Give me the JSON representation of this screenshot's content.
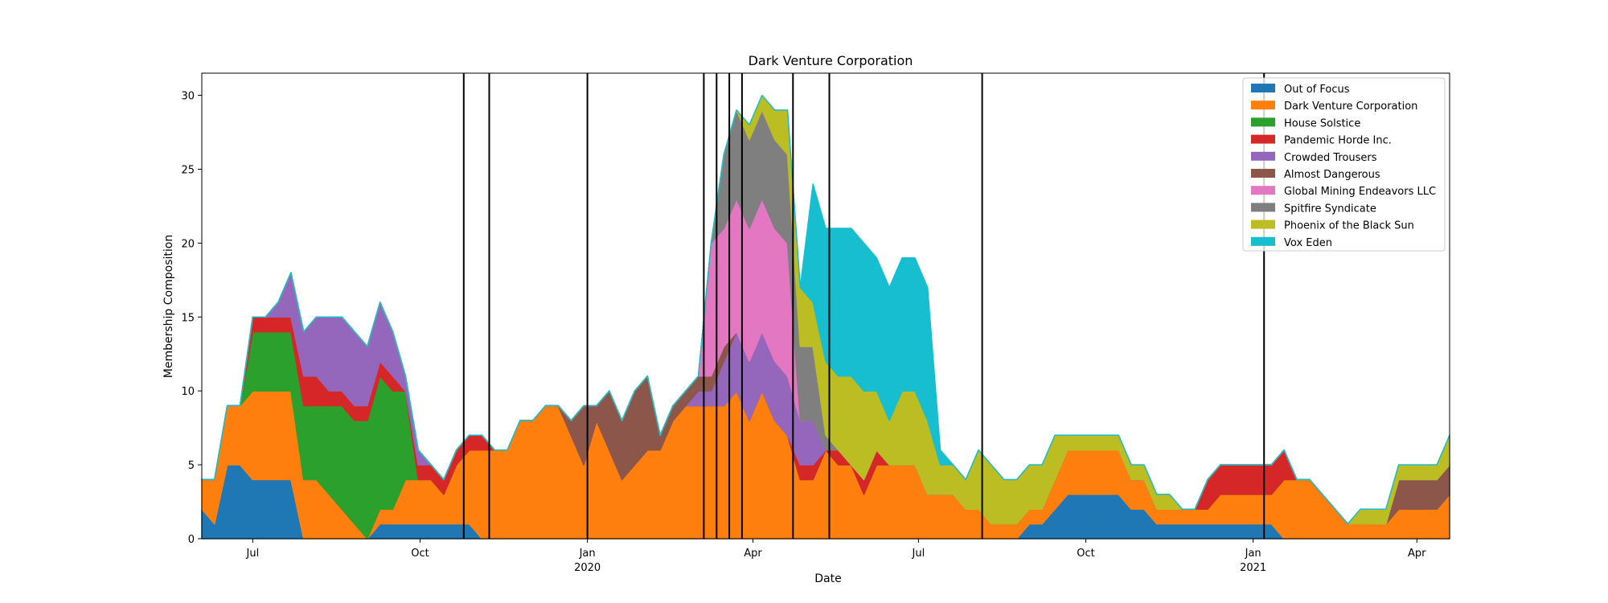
{
  "chart_data": {
    "type": "area",
    "stacked": true,
    "title": "Dark Venture Corporation",
    "xlabel": "Date",
    "ylabel": "Membership Composition",
    "xlim": [
      "2019-06-03",
      "2021-04-19"
    ],
    "ylim": [
      0,
      31.5
    ],
    "grid": false,
    "legend_position": "top-right",
    "x": [
      "2019-06-03",
      "2019-06-10",
      "2019-06-17",
      "2019-06-24",
      "2019-07-01",
      "2019-07-08",
      "2019-07-15",
      "2019-07-22",
      "2019-07-29",
      "2019-08-05",
      "2019-08-12",
      "2019-08-19",
      "2019-08-26",
      "2019-09-02",
      "2019-09-09",
      "2019-09-16",
      "2019-09-23",
      "2019-09-30",
      "2019-10-07",
      "2019-10-14",
      "2019-10-21",
      "2019-10-28",
      "2019-11-04",
      "2019-11-11",
      "2019-11-18",
      "2019-11-25",
      "2019-12-02",
      "2019-12-09",
      "2019-12-16",
      "2019-12-23",
      "2019-12-30",
      "2020-01-06",
      "2020-01-13",
      "2020-01-20",
      "2020-01-27",
      "2020-02-03",
      "2020-02-10",
      "2020-02-17",
      "2020-02-24",
      "2020-03-02",
      "2020-03-09",
      "2020-03-16",
      "2020-03-23",
      "2020-03-30",
      "2020-04-06",
      "2020-04-13",
      "2020-04-20",
      "2020-04-27",
      "2020-05-04",
      "2020-05-11",
      "2020-05-18",
      "2020-05-25",
      "2020-06-01",
      "2020-06-08",
      "2020-06-15",
      "2020-06-22",
      "2020-06-29",
      "2020-07-06",
      "2020-07-13",
      "2020-07-20",
      "2020-07-27",
      "2020-08-03",
      "2020-08-10",
      "2020-08-17",
      "2020-08-24",
      "2020-08-31",
      "2020-09-07",
      "2020-09-14",
      "2020-09-21",
      "2020-09-28",
      "2020-10-05",
      "2020-10-12",
      "2020-10-19",
      "2020-10-26",
      "2020-11-02",
      "2020-11-09",
      "2020-11-16",
      "2020-11-23",
      "2020-11-30",
      "2020-12-07",
      "2020-12-14",
      "2020-12-21",
      "2020-12-28",
      "2021-01-04",
      "2021-01-11",
      "2021-01-18",
      "2021-01-25",
      "2021-02-01",
      "2021-02-08",
      "2021-02-15",
      "2021-02-22",
      "2021-03-01",
      "2021-03-08",
      "2021-03-15",
      "2021-03-22",
      "2021-03-29",
      "2021-04-05",
      "2021-04-12",
      "2021-04-19"
    ],
    "series": [
      {
        "name": "Out of Focus",
        "color": "#1f77b4",
        "values": [
          2,
          1,
          5,
          5,
          4,
          4,
          4,
          4,
          0,
          0,
          0,
          0,
          0,
          0,
          1,
          1,
          1,
          1,
          1,
          1,
          1,
          1,
          0,
          0,
          0,
          0,
          0,
          0,
          0,
          0,
          0,
          0,
          0,
          0,
          0,
          0,
          0,
          0,
          0,
          0,
          0,
          0,
          0,
          0,
          0,
          0,
          0,
          0,
          0,
          0,
          0,
          0,
          0,
          0,
          0,
          0,
          0,
          0,
          0,
          0,
          0,
          0,
          0,
          0,
          0,
          1,
          1,
          2,
          3,
          3,
          3,
          3,
          3,
          2,
          2,
          1,
          1,
          1,
          1,
          1,
          1,
          1,
          1,
          1,
          1,
          0,
          0,
          0,
          0,
          0,
          0,
          0,
          0,
          0,
          0,
          0,
          0,
          0,
          0
        ]
      },
      {
        "name": "Dark Venture Corporation",
        "color": "#ff7f0e",
        "values": [
          2,
          3,
          4,
          4,
          6,
          6,
          6,
          6,
          4,
          4,
          3,
          2,
          1,
          0,
          1,
          1,
          3,
          3,
          3,
          2,
          4,
          5,
          6,
          6,
          6,
          8,
          8,
          9,
          9,
          7,
          5,
          8,
          6,
          4,
          5,
          6,
          6,
          8,
          9,
          9,
          9,
          9,
          10,
          8,
          10,
          8,
          7,
          4,
          4,
          6,
          5,
          5,
          3,
          5,
          5,
          5,
          5,
          3,
          3,
          3,
          2,
          2,
          1,
          1,
          1,
          1,
          1,
          2,
          3,
          3,
          3,
          3,
          3,
          2,
          2,
          1,
          1,
          1,
          1,
          1,
          2,
          2,
          2,
          2,
          2,
          4,
          4,
          4,
          3,
          2,
          1,
          1,
          1,
          1,
          2,
          2,
          2,
          2,
          3
        ]
      },
      {
        "name": "House Solstice",
        "color": "#2ca02c",
        "values": [
          0,
          0,
          0,
          0,
          4,
          4,
          4,
          4,
          5,
          5,
          6,
          7,
          7,
          8,
          9,
          8,
          6,
          0,
          0,
          0,
          0,
          0,
          0,
          0,
          0,
          0,
          0,
          0,
          0,
          0,
          0,
          0,
          0,
          0,
          0,
          0,
          0,
          0,
          0,
          0,
          0,
          0,
          0,
          0,
          0,
          0,
          0,
          0,
          0,
          0,
          0,
          0,
          0,
          0,
          0,
          0,
          0,
          0,
          0,
          0,
          0,
          0,
          0,
          0,
          0,
          0,
          0,
          0,
          0,
          0,
          0,
          0,
          0,
          0,
          0,
          0,
          0,
          0,
          0,
          0,
          0,
          0,
          0,
          0,
          0,
          0,
          0,
          0,
          0,
          0,
          0,
          0,
          0,
          0,
          0,
          0,
          0,
          0,
          0
        ]
      },
      {
        "name": "Pandemic Horde Inc.",
        "color": "#d62728",
        "values": [
          0,
          0,
          0,
          0,
          1,
          1,
          1,
          1,
          2,
          2,
          1,
          1,
          1,
          1,
          1,
          1,
          0,
          1,
          1,
          1,
          1,
          1,
          1,
          0,
          0,
          0,
          0,
          0,
          0,
          0,
          0,
          0,
          0,
          0,
          0,
          0,
          0,
          0,
          0,
          0,
          0,
          0,
          0,
          0,
          0,
          0,
          0,
          1,
          1,
          0,
          1,
          0,
          1,
          1,
          0,
          0,
          0,
          0,
          0,
          0,
          0,
          0,
          0,
          0,
          0,
          0,
          0,
          0,
          0,
          0,
          0,
          0,
          0,
          0,
          0,
          0,
          0,
          0,
          0,
          2,
          2,
          2,
          2,
          2,
          2,
          2,
          0,
          0,
          0,
          0,
          0,
          0,
          0,
          0,
          0,
          0,
          0,
          0,
          0
        ]
      },
      {
        "name": "Crowded Trousers",
        "color": "#9467bd",
        "values": [
          0,
          0,
          0,
          0,
          0,
          0,
          1,
          3,
          3,
          4,
          5,
          5,
          5,
          4,
          4,
          3,
          1,
          1,
          0,
          0,
          0,
          0,
          0,
          0,
          0,
          0,
          0,
          0,
          0,
          0,
          0,
          0,
          0,
          0,
          0,
          0,
          0,
          0,
          0,
          1,
          1,
          3,
          4,
          4,
          4,
          4,
          4,
          3,
          3,
          0,
          0,
          0,
          0,
          0,
          0,
          0,
          0,
          0,
          0,
          0,
          0,
          0,
          0,
          0,
          0,
          0,
          0,
          0,
          0,
          0,
          0,
          0,
          0,
          0,
          0,
          0,
          0,
          0,
          0,
          0,
          0,
          0,
          0,
          0,
          0,
          0,
          0,
          0,
          0,
          0,
          0,
          0,
          0,
          0,
          0,
          0,
          0,
          0,
          0
        ]
      },
      {
        "name": "Almost Dangerous",
        "color": "#8c564b",
        "values": [
          0,
          0,
          0,
          0,
          0,
          0,
          0,
          0,
          0,
          0,
          0,
          0,
          0,
          0,
          0,
          0,
          0,
          0,
          0,
          0,
          0,
          0,
          0,
          0,
          0,
          0,
          0,
          0,
          0,
          1,
          4,
          1,
          4,
          4,
          5,
          5,
          1,
          1,
          1,
          1,
          1,
          1,
          0,
          0,
          0,
          0,
          0,
          0,
          0,
          0,
          0,
          0,
          0,
          0,
          0,
          0,
          0,
          0,
          0,
          0,
          0,
          0,
          0,
          0,
          0,
          0,
          0,
          0,
          0,
          0,
          0,
          0,
          0,
          0,
          0,
          0,
          0,
          0,
          0,
          0,
          0,
          0,
          0,
          0,
          0,
          0,
          0,
          0,
          0,
          0,
          0,
          0,
          0,
          0,
          2,
          2,
          2,
          2,
          2
        ]
      },
      {
        "name": "Global Mining Endeavors LLC",
        "color": "#e377c2",
        "values": [
          0,
          0,
          0,
          0,
          0,
          0,
          0,
          0,
          0,
          0,
          0,
          0,
          0,
          0,
          0,
          0,
          0,
          0,
          0,
          0,
          0,
          0,
          0,
          0,
          0,
          0,
          0,
          0,
          0,
          0,
          0,
          0,
          0,
          0,
          0,
          0,
          0,
          0,
          0,
          0,
          9,
          8,
          9,
          9,
          9,
          9,
          9,
          0,
          0,
          0,
          0,
          0,
          0,
          0,
          0,
          0,
          0,
          0,
          0,
          0,
          0,
          0,
          0,
          0,
          0,
          0,
          0,
          0,
          0,
          0,
          0,
          0,
          0,
          0,
          0,
          0,
          0,
          0,
          0,
          0,
          0,
          0,
          0,
          0,
          0,
          0,
          0,
          0,
          0,
          0,
          0,
          0,
          0,
          0,
          0,
          0,
          0,
          0,
          0
        ]
      },
      {
        "name": "Spitfire Syndicate",
        "color": "#7f7f7f",
        "values": [
          0,
          0,
          0,
          0,
          0,
          0,
          0,
          0,
          0,
          0,
          0,
          0,
          0,
          0,
          0,
          0,
          0,
          0,
          0,
          0,
          0,
          0,
          0,
          0,
          0,
          0,
          0,
          0,
          0,
          0,
          0,
          0,
          0,
          0,
          0,
          0,
          0,
          0,
          0,
          0,
          0,
          5,
          6,
          6,
          6,
          6,
          6,
          5,
          5,
          1,
          0,
          0,
          0,
          0,
          0,
          0,
          0,
          0,
          0,
          0,
          0,
          0,
          0,
          0,
          0,
          0,
          0,
          0,
          0,
          0,
          0,
          0,
          0,
          0,
          0,
          0,
          0,
          0,
          0,
          0,
          0,
          0,
          0,
          0,
          0,
          0,
          0,
          0,
          0,
          0,
          0,
          0,
          0,
          0,
          0,
          0,
          0,
          0,
          0
        ]
      },
      {
        "name": "Phoenix of the Black Sun",
        "color": "#bcbd22",
        "values": [
          0,
          0,
          0,
          0,
          0,
          0,
          0,
          0,
          0,
          0,
          0,
          0,
          0,
          0,
          0,
          0,
          0,
          0,
          0,
          0,
          0,
          0,
          0,
          0,
          0,
          0,
          0,
          0,
          0,
          0,
          0,
          0,
          0,
          0,
          0,
          0,
          0,
          0,
          0,
          0,
          0,
          0,
          0,
          1,
          1,
          2,
          3,
          4,
          3,
          5,
          5,
          6,
          6,
          4,
          3,
          5,
          5,
          5,
          2,
          2,
          2,
          4,
          4,
          3,
          3,
          3,
          3,
          3,
          1,
          1,
          1,
          1,
          1,
          1,
          1,
          1,
          1,
          0,
          0,
          0,
          0,
          0,
          0,
          0,
          0,
          0,
          0,
          0,
          0,
          0,
          0,
          1,
          1,
          1,
          1,
          1,
          1,
          1,
          2
        ]
      },
      {
        "name": "Vox Eden",
        "color": "#17becf",
        "values": [
          0,
          0,
          0,
          0,
          0,
          0,
          0,
          0,
          0,
          0,
          0,
          0,
          0,
          0,
          0,
          0,
          0,
          0,
          0,
          0,
          0,
          0,
          0,
          0,
          0,
          0,
          0,
          0,
          0,
          0,
          0,
          0,
          0,
          0,
          0,
          0,
          0,
          0,
          0,
          0,
          0,
          0,
          0,
          0,
          0,
          0,
          0,
          0,
          8,
          9,
          10,
          10,
          10,
          9,
          9,
          9,
          9,
          9,
          1,
          0,
          0,
          0,
          0,
          0,
          0,
          0,
          0,
          0,
          0,
          0,
          0,
          0,
          0,
          0,
          0,
          0,
          0,
          0,
          0,
          0,
          0,
          0,
          0,
          0,
          0,
          0,
          0,
          0,
          0,
          0,
          0,
          0,
          0,
          0,
          0,
          0,
          0,
          0,
          0
        ]
      }
    ],
    "event_lines": [
      "2019-10-25",
      "2019-11-08",
      "2020-01-01",
      "2020-03-05",
      "2020-03-12",
      "2020-03-19",
      "2020-03-26",
      "2020-04-23",
      "2020-05-13",
      "2020-08-05",
      "2021-01-07"
    ],
    "x_ticks": [
      {
        "date": "2019-07-01",
        "label": "Jul",
        "sublabel": ""
      },
      {
        "date": "2019-10-01",
        "label": "Oct",
        "sublabel": ""
      },
      {
        "date": "2020-01-01",
        "label": "Jan",
        "sublabel": "2020"
      },
      {
        "date": "2020-04-01",
        "label": "Apr",
        "sublabel": ""
      },
      {
        "date": "2020-07-01",
        "label": "Jul",
        "sublabel": ""
      },
      {
        "date": "2020-10-01",
        "label": "Oct",
        "sublabel": ""
      },
      {
        "date": "2021-01-01",
        "label": "Jan",
        "sublabel": "2021"
      },
      {
        "date": "2021-04-01",
        "label": "Apr",
        "sublabel": ""
      }
    ],
    "y_ticks": [
      0,
      5,
      10,
      15,
      20,
      25,
      30
    ]
  }
}
